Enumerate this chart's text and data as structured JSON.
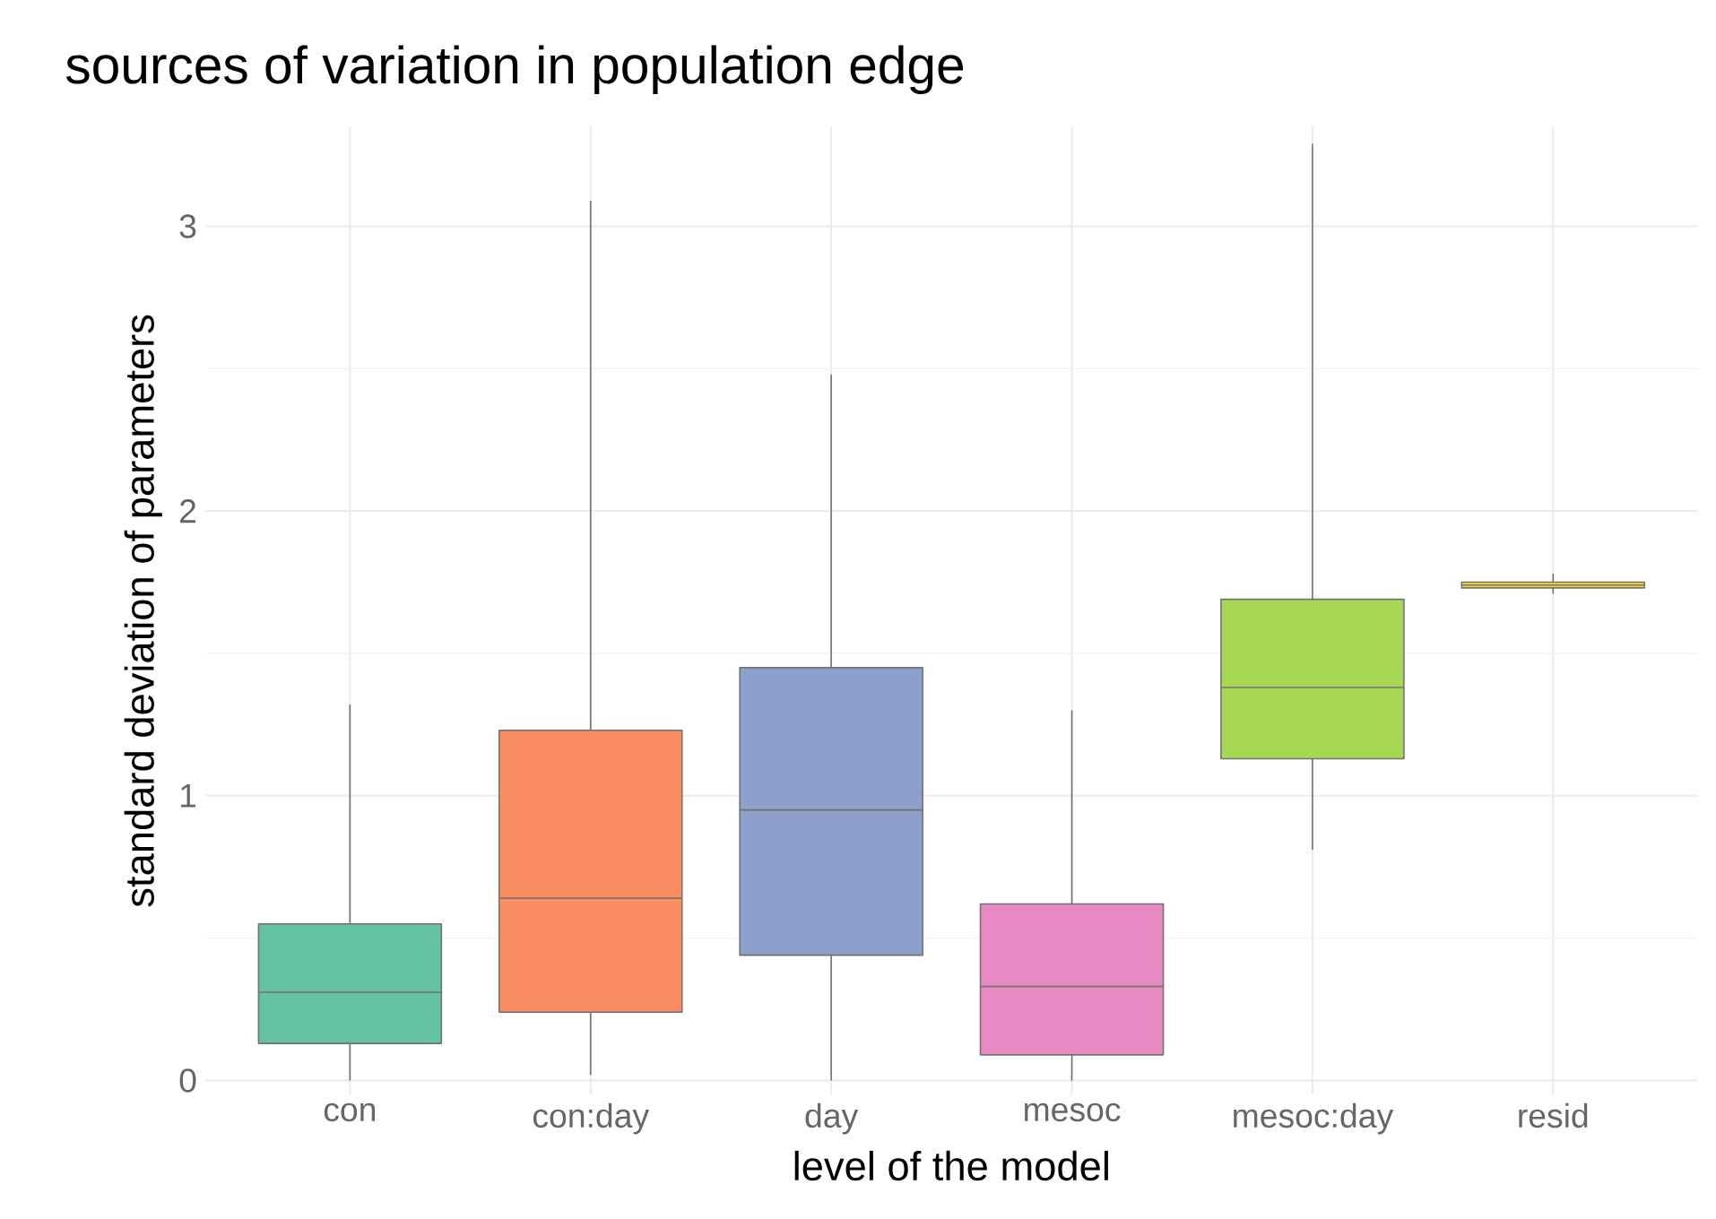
{
  "chart_data": {
    "type": "box",
    "title": "sources of variation in population edge",
    "xlabel": "level of the model",
    "ylabel": "standard deviation of parameters",
    "categories": [
      "con",
      "con:day",
      "day",
      "mesoc",
      "mesoc:day",
      "resid"
    ],
    "colors": [
      "#66c2a5",
      "#fc8d62",
      "#8da0cb",
      "#e78ac3",
      "#a6d854",
      "#ffd92f"
    ],
    "boxes": [
      {
        "low": 0.0,
        "q1": 0.13,
        "median": 0.31,
        "q3": 0.55,
        "high": 1.32
      },
      {
        "low": 0.02,
        "q1": 0.24,
        "median": 0.64,
        "q3": 1.23,
        "high": 3.09
      },
      {
        "low": 0.0,
        "q1": 0.44,
        "median": 0.95,
        "q3": 1.45,
        "high": 2.48
      },
      {
        "low": 0.0,
        "q1": 0.09,
        "median": 0.33,
        "q3": 0.62,
        "high": 1.3
      },
      {
        "low": 0.81,
        "q1": 1.13,
        "median": 1.38,
        "q3": 1.69,
        "high": 3.29
      },
      {
        "low": 1.71,
        "q1": 1.73,
        "median": 1.74,
        "q3": 1.75,
        "high": 1.78
      }
    ],
    "ylim": [
      -0.05,
      3.35
    ],
    "yticks": [
      0,
      1,
      2,
      3
    ],
    "grid": true
  }
}
